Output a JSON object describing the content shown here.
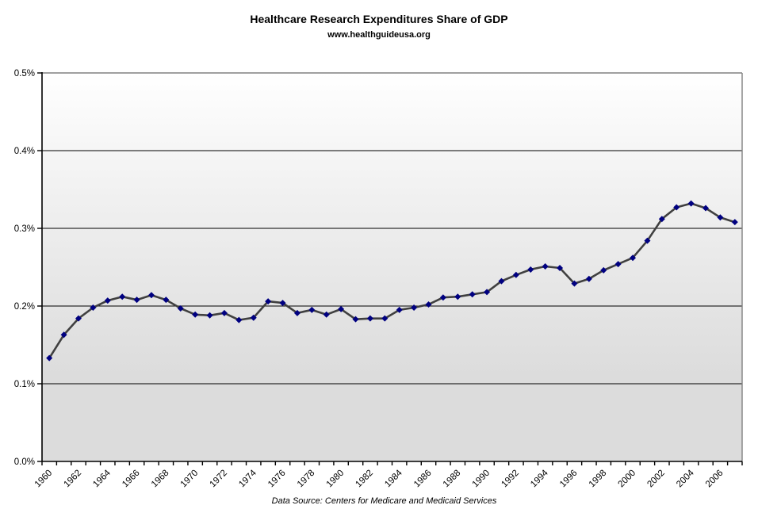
{
  "header": {
    "title": "Healthcare Research Expenditures Share of GDP",
    "subtitle": "www.healthguideusa.org"
  },
  "footer": {
    "source_note": "Data Source: Centers for Medicare and Medicaid Services"
  },
  "chart_data": {
    "type": "line",
    "title": "Healthcare Research Expenditures Share of GDP",
    "subtitle": "www.healthguideusa.org",
    "xlabel": "",
    "ylabel": "",
    "legend": "none",
    "grid": "horizontal",
    "marker": "diamond",
    "x": [
      1960,
      1961,
      1962,
      1963,
      1964,
      1965,
      1966,
      1967,
      1968,
      1969,
      1970,
      1971,
      1972,
      1973,
      1974,
      1975,
      1976,
      1977,
      1978,
      1979,
      1980,
      1981,
      1982,
      1983,
      1984,
      1985,
      1986,
      1987,
      1988,
      1989,
      1990,
      1991,
      1992,
      1993,
      1994,
      1995,
      1996,
      1997,
      1998,
      1999,
      2000,
      2001,
      2002,
      2003,
      2004,
      2005,
      2006,
      2007
    ],
    "series": [
      {
        "name": "Healthcare research expenditures share of GDP (%)",
        "values": [
          0.133,
          0.163,
          0.184,
          0.198,
          0.207,
          0.212,
          0.208,
          0.214,
          0.208,
          0.197,
          0.189,
          0.188,
          0.191,
          0.182,
          0.185,
          0.206,
          0.204,
          0.191,
          0.195,
          0.189,
          0.196,
          0.183,
          0.184,
          0.184,
          0.195,
          0.198,
          0.202,
          0.211,
          0.212,
          0.215,
          0.218,
          0.232,
          0.24,
          0.247,
          0.251,
          0.249,
          0.229,
          0.235,
          0.246,
          0.254,
          0.262,
          0.284,
          0.312,
          0.327,
          0.332,
          0.326,
          0.314,
          0.308
        ]
      }
    ],
    "ylim": [
      0.0,
      0.5
    ],
    "ytick_step": 0.1,
    "ytick_labels": [
      "0.0%",
      "0.1%",
      "0.2%",
      "0.3%",
      "0.4%",
      "0.5%"
    ],
    "xtick_interval": 2,
    "xtick_labels": [
      "1960",
      "1962",
      "1964",
      "1966",
      "1968",
      "1970",
      "1972",
      "1974",
      "1976",
      "1978",
      "1980",
      "1982",
      "1984",
      "1986",
      "1988",
      "1990",
      "1992",
      "1994",
      "1996",
      "1998",
      "2000",
      "2002",
      "2004",
      "2006"
    ],
    "source_note": "Data Source: Centers for Medicare and Medicaid Services",
    "colors": {
      "line": "#404040",
      "marker": "#000080",
      "gridline": "#000000",
      "axis": "#000000",
      "plot_border": "#808080",
      "plot_bg_top": "#ffffff",
      "plot_bg_bottom": "#dcdcdc",
      "text": "#000000"
    }
  }
}
